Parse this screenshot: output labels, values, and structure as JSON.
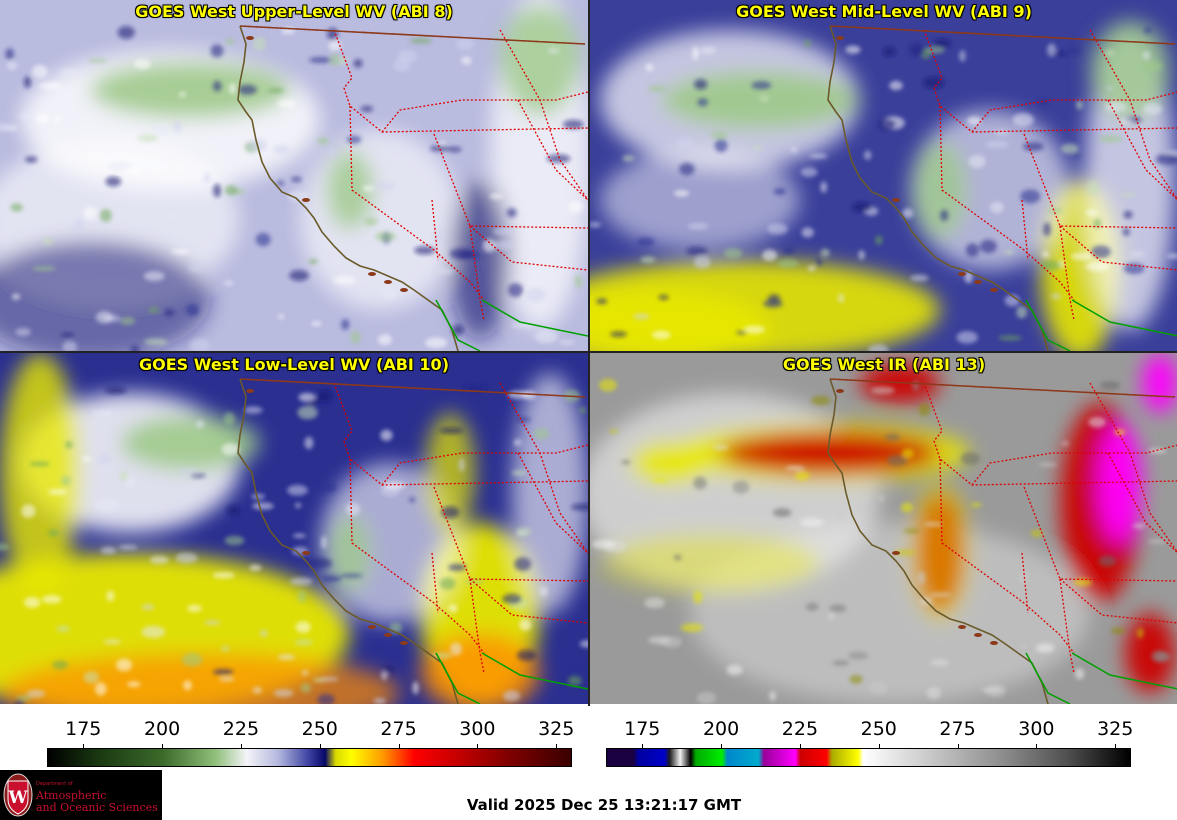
{
  "panels": [
    {
      "title": "GOES West Upper-Level WV (ABI 8)",
      "palette": "wv",
      "bg": "#b9bbdf"
    },
    {
      "title": "GOES West Mid-Level WV (ABI 9)",
      "palette": "wv",
      "bg": "#3a3f9a"
    },
    {
      "title": "GOES West Low-Level WV (ABI 10)",
      "palette": "wv",
      "bg": "#2a2f90"
    },
    {
      "title": "GOES West IR (ABI 13)",
      "palette": "ir",
      "bg": "#9a9a9a"
    }
  ],
  "colorbars": [
    {
      "ticks": [
        "175",
        "200",
        "225",
        "250",
        "275",
        "300",
        "325"
      ]
    },
    {
      "ticks": [
        "175",
        "200",
        "225",
        "250",
        "275",
        "300",
        "325"
      ]
    }
  ],
  "colors": {
    "title_text": "#ffff00",
    "coastline": "#6b5a2a",
    "state_border": "#e00000",
    "national_border": "#8b3a1a",
    "mexico_border": "#00a000"
  },
  "logo": {
    "department": "Department of",
    "line1": "Atmospheric",
    "line2": "and Oceanic Sciences"
  },
  "valid_time": "Valid 2025 Dec 25 13:21:17 GMT"
}
